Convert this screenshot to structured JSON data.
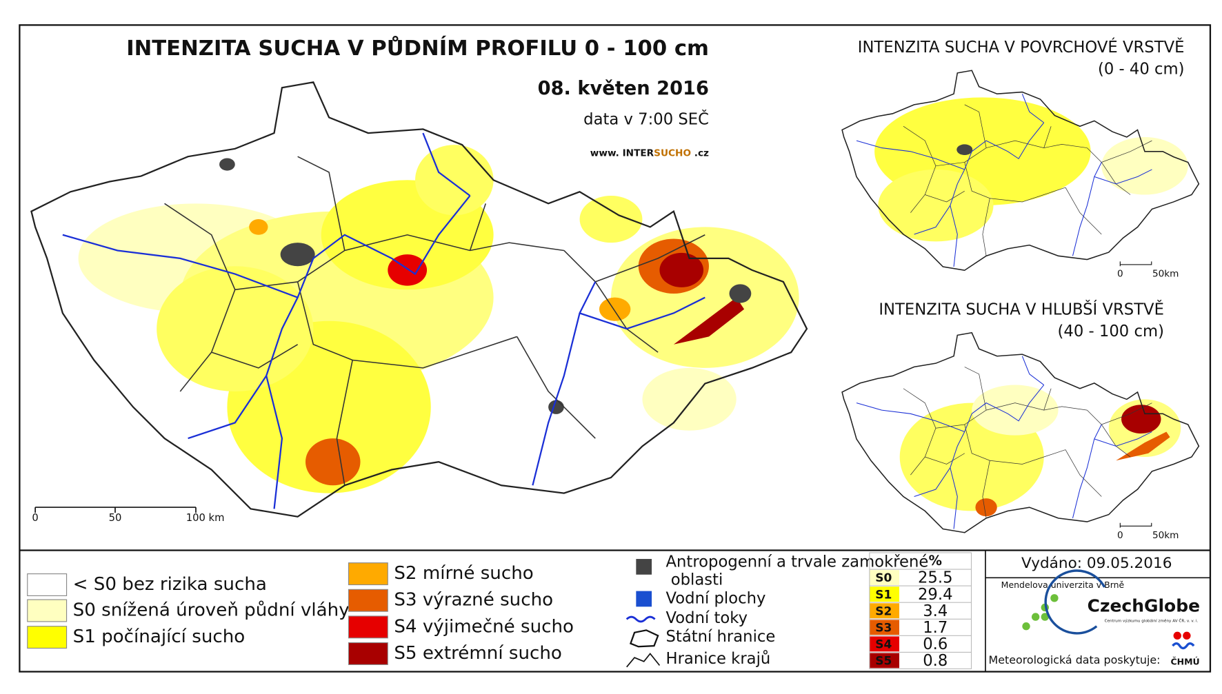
{
  "main_map": {
    "title": "INTENZITA SUCHA V PŮDNÍM PROFILU 0 - 100 cm",
    "date": "08. květen 2016",
    "data_time": "data v 7:00 SEČ",
    "website": {
      "prefix": "www.",
      "part1": "INTER",
      "part2": "SUCHO",
      "suffix": ".cz"
    },
    "scale": [
      "0",
      "50",
      "100 km"
    ]
  },
  "surface_map": {
    "title": "INTENZITA SUCHA V POVRCHOVÉ VRSTVĚ",
    "subtitle": "(0 - 40 cm)",
    "scale": [
      "0",
      "50km"
    ]
  },
  "deep_map": {
    "title": "INTENZITA SUCHA V HLUBŠÍ VRSTVĚ",
    "subtitle": "(40 - 100 cm)",
    "scale": [
      "0",
      "50km"
    ]
  },
  "legend": {
    "drought_classes": [
      {
        "label": "< S0 bez rizika sucha",
        "color": "#ffffff"
      },
      {
        "label": "S0 snížená úroveň půdní vláhy",
        "color": "#ffffc0"
      },
      {
        "label": "S1 počínající sucho",
        "color": "#ffff00"
      },
      {
        "label": "S2 mírné sucho",
        "color": "#ffaa00"
      },
      {
        "label": "S3 výrazné sucho",
        "color": "#e65c00"
      },
      {
        "label": "S4 výjimečné sucho",
        "color": "#e60000"
      },
      {
        "label": "S5 extrémní sucho",
        "color": "#a80000"
      }
    ],
    "other": {
      "anthropogenic": "Antropogenní a trvale zamokřené oblasti",
      "water_bodies": "Vodní plochy",
      "rivers": "Vodní toky",
      "state_border": "Státní hranice",
      "region_border": "Hranice krajů"
    }
  },
  "stats_table": {
    "header": "%",
    "rows": [
      {
        "class": "S0",
        "percent": 25.5,
        "color": "#ffffc0"
      },
      {
        "class": "S1",
        "percent": 29.4,
        "color": "#ffff00"
      },
      {
        "class": "S2",
        "percent": 3.4,
        "color": "#ffaa00"
      },
      {
        "class": "S3",
        "percent": 1.7,
        "color": "#e65c00"
      },
      {
        "class": "S4",
        "percent": 0.6,
        "color": "#e60000"
      },
      {
        "class": "S5",
        "percent": 0.8,
        "color": "#a80000"
      }
    ]
  },
  "issued": "Vydáno: 09.05.2016",
  "logos": {
    "mendel": "Mendelova univerzita v Brně",
    "czechglobe": "CzechGlobe",
    "czechglobe_sub": "Centrum výzkumu globální změny AV ČR, v. v. i.",
    "chmu": "ČHMÚ"
  },
  "data_provider": "Meteorologická data poskytuje:"
}
